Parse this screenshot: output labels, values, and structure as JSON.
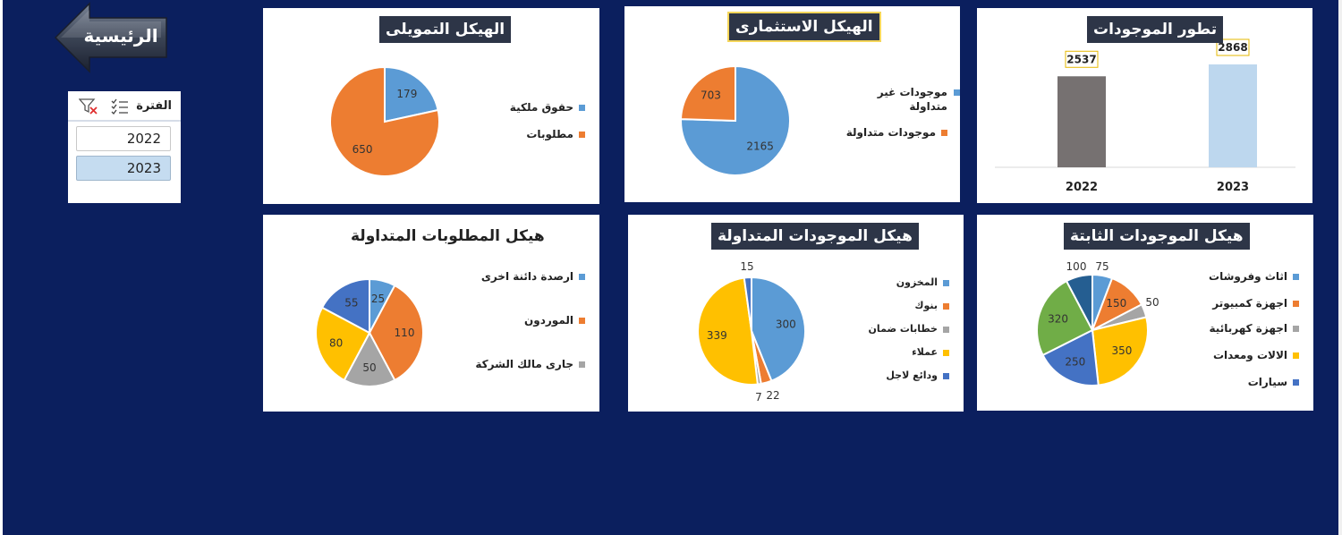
{
  "home_button": {
    "label": "الرئيسية"
  },
  "slicer": {
    "title": "الفترة",
    "items": [
      {
        "label": "2022",
        "selected": false
      },
      {
        "label": "2023",
        "selected": true
      }
    ]
  },
  "panels": {
    "financing": {
      "title": "الهيكل التمويلى"
    },
    "investment": {
      "title": "الهيكل الاستثمارى"
    },
    "assets_trend": {
      "title": "تطور الموجودات"
    },
    "current_liabilities": {
      "title": "هيكل المطلوبات المتداولة"
    },
    "current_assets": {
      "title": "هيكل الموجودات المتداولة"
    },
    "fixed_assets": {
      "title": "هيكل الموجودات  الثابتة"
    }
  },
  "chart_data": [
    {
      "id": "financing",
      "type": "pie",
      "labels": [
        "حقوق ملكية",
        "مطلوبات"
      ],
      "values": [
        179,
        650
      ],
      "colors": [
        "#5b9bd5",
        "#ed7d31"
      ]
    },
    {
      "id": "investment",
      "type": "pie",
      "labels": [
        "موجودات غير متداولة",
        "موجودات متداولة"
      ],
      "values": [
        2165,
        703
      ],
      "colors": [
        "#5b9bd5",
        "#ed7d31"
      ]
    },
    {
      "id": "assets_trend",
      "type": "bar",
      "categories": [
        "2022",
        "2023"
      ],
      "values": [
        2537,
        2868
      ],
      "colors": [
        "#767171",
        "#bdd7ee"
      ]
    },
    {
      "id": "current_liabilities",
      "type": "pie",
      "labels": [
        "ارصدة دائنة اخرى",
        "الموردون",
        "جارى مالك الشركة",
        "",
        ""
      ],
      "values": [
        25,
        110,
        50,
        80,
        55
      ],
      "colors": [
        "#5b9bd5",
        "#ed7d31",
        "#a5a5a5",
        "#ffc000",
        "#4472c4"
      ]
    },
    {
      "id": "current_assets",
      "type": "pie",
      "labels": [
        "المخزون",
        "بنوك",
        "خطابات ضمان",
        "عملاء",
        "ودائع لاجل"
      ],
      "values": [
        300,
        22,
        7,
        339,
        15
      ],
      "colors": [
        "#5b9bd5",
        "#ed7d31",
        "#a5a5a5",
        "#ffc000",
        "#4472c4"
      ]
    },
    {
      "id": "fixed_assets",
      "type": "pie",
      "labels": [
        "اثاث وفروشات",
        "اجهزة كمبيوتر",
        "اجهزة كهربائية",
        "الالات ومعدات",
        "سيارات",
        "",
        ""
      ],
      "values": [
        75,
        150,
        50,
        350,
        250,
        320,
        100
      ],
      "colors": [
        "#5b9bd5",
        "#ed7d31",
        "#a5a5a5",
        "#ffc000",
        "#4472c4",
        "#70ad47",
        "#255e91"
      ]
    }
  ]
}
